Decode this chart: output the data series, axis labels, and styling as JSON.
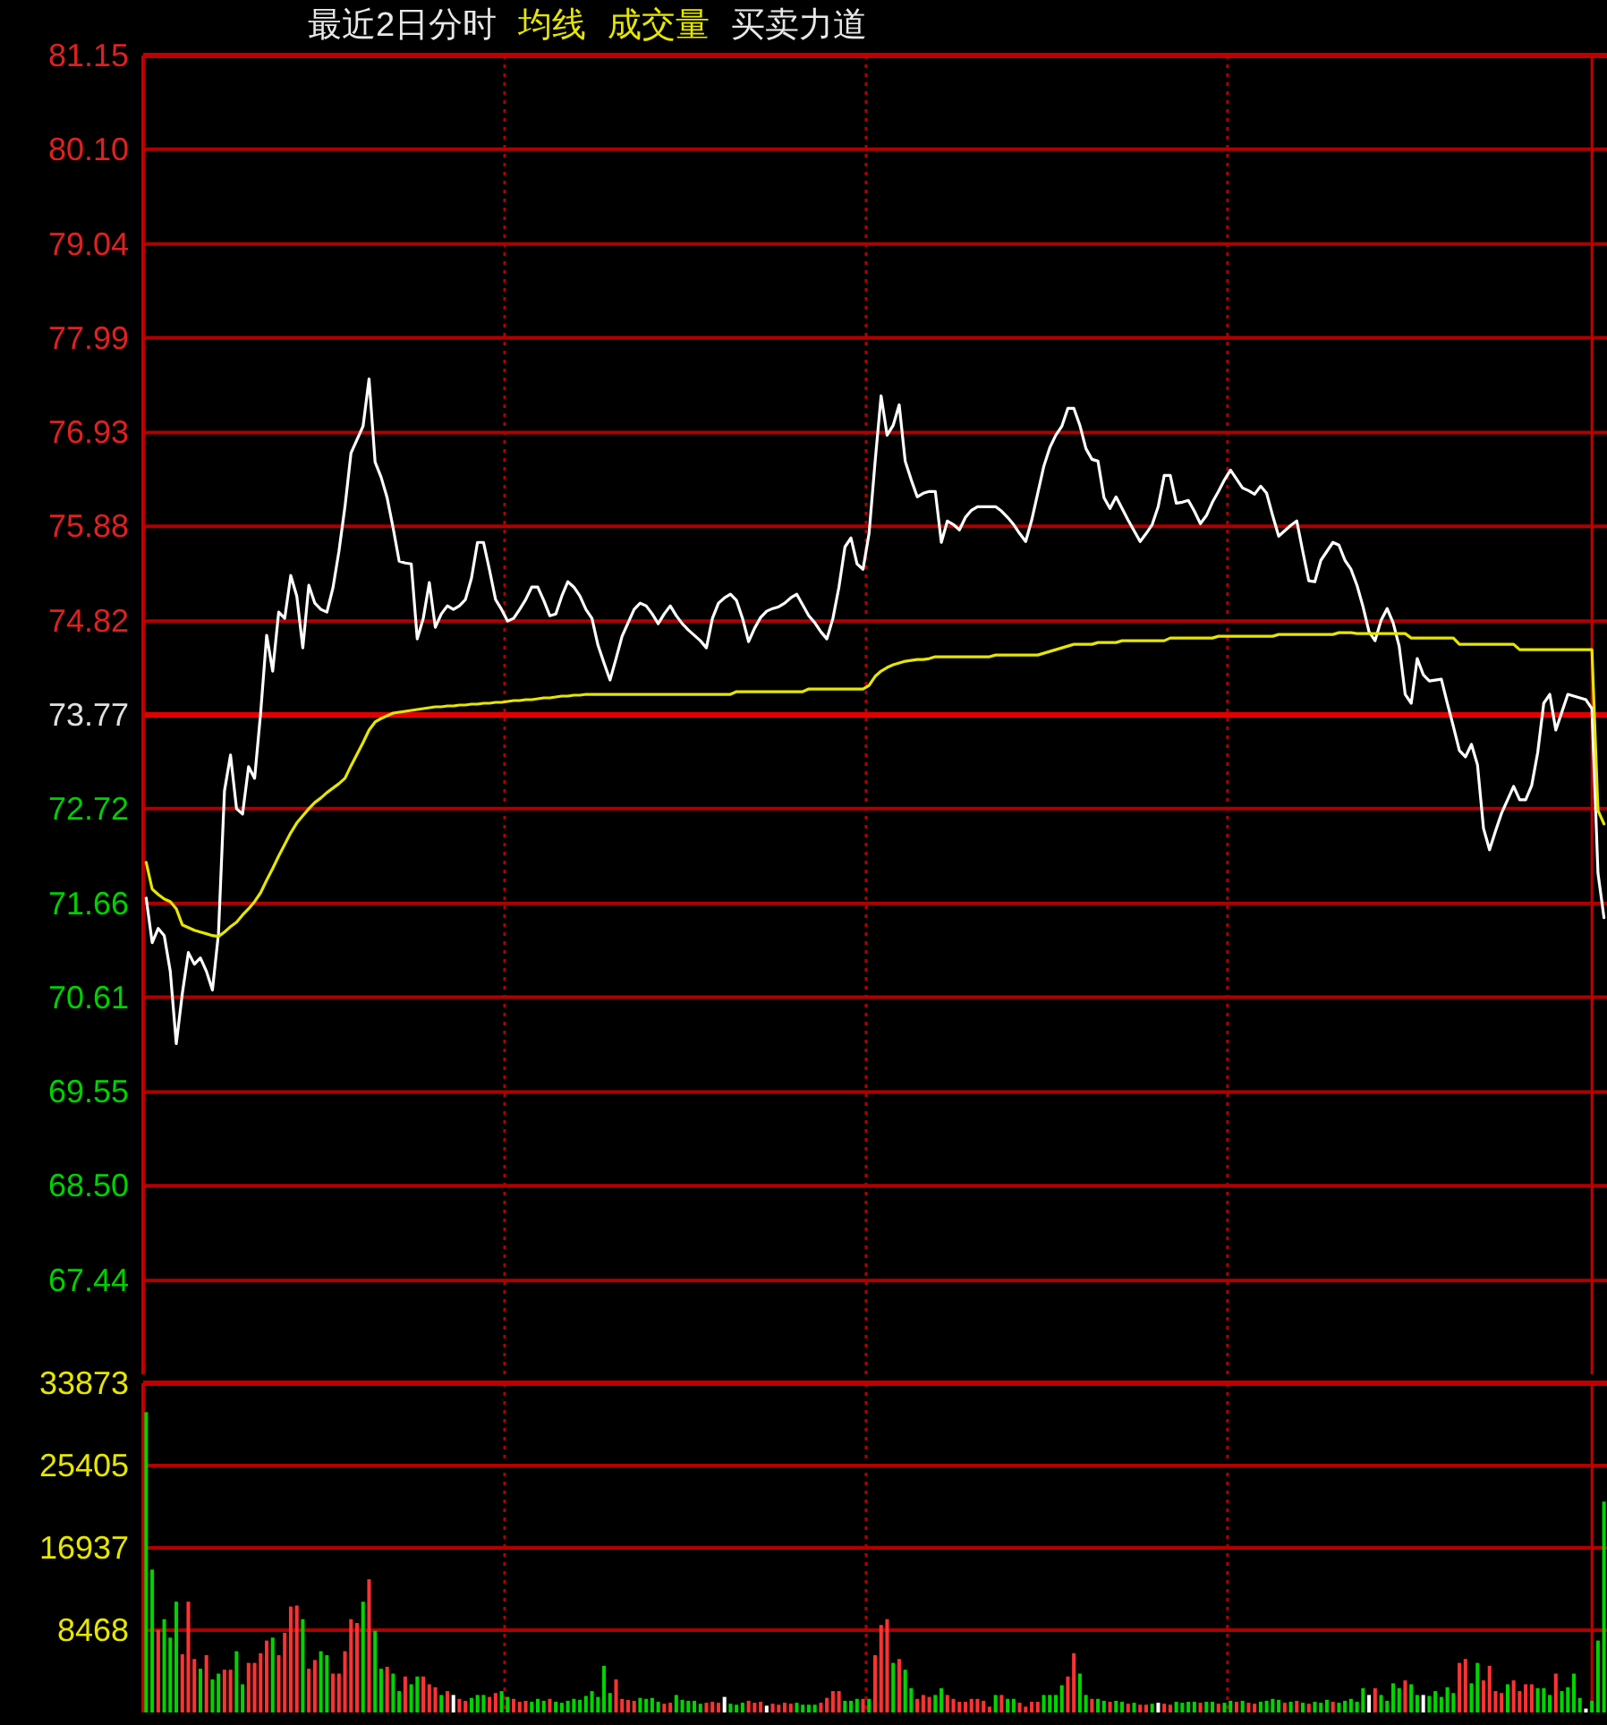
{
  "chart_data": [
    {
      "type": "line",
      "title": "最近2日分时",
      "annotations": [
        "成交量",
        "买卖力道"
      ],
      "grid": true,
      "tick_labels": "y",
      "ylim": [
        66.39,
        81.15
      ],
      "yticks": [
        81.15,
        {
          "value": 80.1,
          "label": "80.10"
        },
        79.04,
        77.99,
        76.93,
        75.88,
        74.82,
        73.77,
        72.72,
        71.66,
        70.61,
        69.55,
        {
          "value": 68.5,
          "label": "68.50"
        },
        67.44
      ],
      "ref_lines": [
        {
          "axis": "y",
          "value": 73.77,
          "color": "#e00000"
        }
      ],
      "categories": [
        null,
        null,
        null,
        null,
        null,
        null,
        null,
        null,
        null,
        null,
        null,
        null,
        null,
        null,
        null,
        null,
        null,
        null,
        null,
        null,
        null,
        null,
        null,
        null,
        null,
        null,
        null,
        null,
        null,
        null,
        null,
        null,
        null,
        null,
        null,
        null,
        null,
        null,
        null,
        null,
        null,
        null,
        null,
        null,
        null,
        null,
        null,
        null,
        null,
        null,
        null,
        null,
        null,
        null,
        null,
        null,
        null,
        null,
        null,
        null,
        null,
        null,
        null,
        null,
        null,
        null,
        null,
        null,
        null,
        null,
        null,
        null,
        null,
        null,
        null,
        null,
        null,
        null,
        null,
        null,
        null,
        null,
        null,
        null,
        null,
        null,
        null,
        null,
        null,
        null,
        null,
        null,
        null,
        null,
        null,
        null,
        null,
        null,
        null,
        null,
        null,
        null,
        null,
        null,
        null,
        null,
        null,
        null,
        null,
        null,
        null,
        null,
        null,
        null,
        null,
        null,
        null,
        null,
        null,
        null,
        null,
        null,
        null,
        null,
        null,
        null,
        null,
        null,
        null,
        null,
        null,
        null,
        null,
        null,
        null,
        null,
        null,
        null,
        null,
        null,
        null,
        null,
        null,
        null,
        null,
        null,
        null,
        null,
        null,
        null,
        null,
        null,
        null,
        null,
        null,
        null,
        null,
        null,
        null,
        null,
        null,
        null,
        null,
        null,
        null,
        null,
        null,
        null,
        null,
        null,
        null,
        null,
        null,
        null,
        null,
        null,
        null,
        null,
        null,
        null,
        null,
        null,
        null,
        null,
        null,
        null,
        null,
        null,
        null,
        null,
        null,
        null,
        null,
        null,
        null,
        null,
        null,
        null,
        null,
        null,
        null,
        null,
        null,
        null,
        null,
        null,
        null,
        null,
        null,
        null,
        null,
        null,
        null,
        null,
        null,
        null,
        null,
        null,
        null,
        null,
        null,
        null,
        null,
        null,
        null,
        null,
        null,
        null,
        null,
        null,
        null,
        null,
        null,
        null,
        null,
        null,
        null,
        null,
        null,
        null,
        null,
        null,
        null
      ],
      "series": [
        {
          "color": "#ffffff",
          "values": [
            71.72,
            71.22,
            71.38,
            71.3,
            70.9,
            70.09,
            70.65,
            71.11,
            70.98,
            71.05,
            70.9,
            70.69,
            71.32,
            72.92,
            73.32,
            72.72,
            72.66,
            73.19,
            73.06,
            73.79,
            74.66,
            74.26,
            74.92,
            74.85,
            75.33,
            75.1,
            74.52,
            75.22,
            75.02,
            74.95,
            74.92,
            75.19,
            75.6,
            76.1,
            76.7,
            76.85,
            77.0,
            77.53,
            76.6,
            76.43,
            76.2,
            75.86,
            75.49,
            75.47,
            75.46,
            74.62,
            74.85,
            75.25,
            74.75,
            74.9,
            74.99,
            74.95,
            74.99,
            75.06,
            75.3,
            75.7,
            75.7,
            75.39,
            75.06,
            74.95,
            74.82,
            74.85,
            74.95,
            75.06,
            75.2,
            75.2,
            75.05,
            74.88,
            74.9,
            75.1,
            75.26,
            75.2,
            75.1,
            74.95,
            74.85,
            74.55,
            74.35,
            74.16,
            74.4,
            74.65,
            74.8,
            74.95,
            75.02,
            74.99,
            74.9,
            74.79,
            74.9,
            74.99,
            74.88,
            74.79,
            74.72,
            74.66,
            74.6,
            74.52,
            74.85,
            75.02,
            75.08,
            75.12,
            75.05,
            74.85,
            74.59,
            74.74,
            74.86,
            74.93,
            74.96,
            74.98,
            75.02,
            75.08,
            75.12,
            75.0,
            74.88,
            74.8,
            74.7,
            74.62,
            74.85,
            75.2,
            75.65,
            75.75,
            75.46,
            75.4,
            75.8,
            76.6,
            77.34,
            76.9,
            77.01,
            77.24,
            76.61,
            76.4,
            76.21,
            76.25,
            76.27,
            76.27,
            75.7,
            75.94,
            75.9,
            75.84,
            75.98,
            76.06,
            76.1,
            76.1,
            76.1,
            76.1,
            76.05,
            75.98,
            75.9,
            75.8,
            75.71,
            75.95,
            76.25,
            76.55,
            76.76,
            76.9,
            77.0,
            77.2,
            77.2,
            77.01,
            76.75,
            76.63,
            76.61,
            76.2,
            76.08,
            76.21,
            76.08,
            75.95,
            75.83,
            75.71,
            75.8,
            75.9,
            76.1,
            76.45,
            76.45,
            76.14,
            76.15,
            76.17,
            76.05,
            75.91,
            76.0,
            76.15,
            76.27,
            76.4,
            76.51,
            76.41,
            76.31,
            76.28,
            76.24,
            76.33,
            76.25,
            76.0,
            75.77,
            75.83,
            75.89,
            75.94,
            75.6,
            75.27,
            75.26,
            75.5,
            75.6,
            75.7,
            75.67,
            75.5,
            75.4,
            75.22,
            74.98,
            74.7,
            74.6,
            74.83,
            74.96,
            74.8,
            74.54,
            74.0,
            73.9,
            74.4,
            74.22,
            74.15,
            74.16,
            74.17,
            73.9,
            73.64,
            73.37,
            73.3,
            73.44,
            73.21,
            72.5,
            72.26,
            72.47,
            72.67,
            72.82,
            72.97,
            72.82,
            72.82,
            72.98,
            73.35,
            73.9,
            74.0,
            73.6,
            73.8,
            74.0,
            73.98,
            73.96,
            73.94,
            73.84,
            72.0,
            71.5
          ]
        },
        {
          "name": "均线",
          "color": "#e6e600",
          "values": [
            72.12,
            71.82,
            71.76,
            71.71,
            71.68,
            71.6,
            71.42,
            71.39,
            71.36,
            71.34,
            71.32,
            71.3,
            71.29,
            71.34,
            71.4,
            71.45,
            71.53,
            71.6,
            71.68,
            71.78,
            71.92,
            72.05,
            72.19,
            72.32,
            72.45,
            72.56,
            72.64,
            72.72,
            72.79,
            72.84,
            72.9,
            72.95,
            73.0,
            73.06,
            73.2,
            73.33,
            73.46,
            73.6,
            73.69,
            73.73,
            73.76,
            73.79,
            73.8,
            73.81,
            73.82,
            73.83,
            73.84,
            73.85,
            73.86,
            73.86,
            73.87,
            73.87,
            73.88,
            73.88,
            73.89,
            73.89,
            73.9,
            73.9,
            73.91,
            73.91,
            73.92,
            73.93,
            73.93,
            73.94,
            73.94,
            73.95,
            73.96,
            73.96,
            73.97,
            73.98,
            73.98,
            73.99,
            73.99,
            74.0,
            74.0,
            74.0,
            74.0,
            74.0,
            74.0,
            74.0,
            74.0,
            74.0,
            74.0,
            74.0,
            74.0,
            74.0,
            74.0,
            74.0,
            74.0,
            74.0,
            74.0,
            74.0,
            74.0,
            74.0,
            74.0,
            74.0,
            74.0,
            74.0,
            74.03,
            74.03,
            74.03,
            74.03,
            74.03,
            74.03,
            74.03,
            74.03,
            74.03,
            74.03,
            74.03,
            74.03,
            74.06,
            74.06,
            74.06,
            74.06,
            74.06,
            74.06,
            74.06,
            74.06,
            74.06,
            74.06,
            74.1,
            74.2,
            74.26,
            74.3,
            74.33,
            74.35,
            74.37,
            74.38,
            74.39,
            74.39,
            74.4,
            74.42,
            74.42,
            74.42,
            74.42,
            74.42,
            74.42,
            74.42,
            74.42,
            74.42,
            74.42,
            74.44,
            74.44,
            74.44,
            74.44,
            74.44,
            74.44,
            74.44,
            74.44,
            74.46,
            74.48,
            74.5,
            74.52,
            74.54,
            74.56,
            74.56,
            74.56,
            74.56,
            74.58,
            74.58,
            74.58,
            74.58,
            74.6,
            74.6,
            74.6,
            74.6,
            74.6,
            74.6,
            74.6,
            74.6,
            74.63,
            74.63,
            74.63,
            74.63,
            74.63,
            74.63,
            74.63,
            74.63,
            74.65,
            74.65,
            74.65,
            74.65,
            74.65,
            74.65,
            74.65,
            74.65,
            74.65,
            74.65,
            74.67,
            74.67,
            74.67,
            74.67,
            74.67,
            74.67,
            74.67,
            74.67,
            74.67,
            74.67,
            74.69,
            74.69,
            74.69,
            74.68,
            74.68,
            74.68,
            74.68,
            74.68,
            74.68,
            74.68,
            74.68,
            74.68,
            74.63,
            74.63,
            74.63,
            74.63,
            74.63,
            74.63,
            74.63,
            74.63,
            74.56,
            74.56,
            74.56,
            74.56,
            74.56,
            74.56,
            74.56,
            74.56,
            74.56,
            74.56,
            74.5,
            74.5,
            74.5,
            74.5,
            74.5,
            74.5,
            74.5,
            74.5,
            74.5,
            74.5,
            74.5,
            74.5,
            74.5,
            72.7,
            72.55
          ]
        }
      ]
    },
    {
      "type": "bar",
      "grid": true,
      "tick_labels": "y",
      "ylim": [
        0,
        33873
      ],
      "yticks": [
        33873,
        25405,
        16937,
        8468
      ],
      "categories": [
        null,
        null,
        null,
        null,
        null,
        null,
        null,
        null,
        null,
        null,
        null,
        null,
        null,
        null,
        null,
        null,
        null,
        null,
        null,
        null,
        null,
        null,
        null,
        null,
        null,
        null,
        null,
        null,
        null,
        null,
        null,
        null,
        null,
        null,
        null,
        null,
        null,
        null,
        null,
        null,
        null,
        null,
        null,
        null,
        null,
        null,
        null,
        null,
        null,
        null,
        null,
        null,
        null,
        null,
        null,
        null,
        null,
        null,
        null,
        null,
        null,
        null,
        null,
        null,
        null,
        null,
        null,
        null,
        null,
        null,
        null,
        null,
        null,
        null,
        null,
        null,
        null,
        null,
        null,
        null,
        null,
        null,
        null,
        null,
        null,
        null,
        null,
        null,
        null,
        null,
        null,
        null,
        null,
        null,
        null,
        null,
        null,
        null,
        null,
        null,
        null,
        null,
        null,
        null,
        null,
        null,
        null,
        null,
        null,
        null,
        null,
        null,
        null,
        null,
        null,
        null,
        null,
        null,
        null,
        null,
        null,
        null,
        null,
        null,
        null,
        null,
        null,
        null,
        null,
        null,
        null,
        null,
        null,
        null,
        null,
        null,
        null,
        null,
        null,
        null,
        null,
        null,
        null,
        null,
        null,
        null,
        null,
        null,
        null,
        null,
        null,
        null,
        null,
        null,
        null,
        null,
        null,
        null,
        null,
        null,
        null,
        null,
        null,
        null,
        null,
        null,
        null,
        null,
        null,
        null,
        null,
        null,
        null,
        null,
        null,
        null,
        null,
        null,
        null,
        null,
        null,
        null,
        null,
        null,
        null,
        null,
        null,
        null,
        null,
        null,
        null,
        null,
        null,
        null,
        null,
        null,
        null,
        null,
        null,
        null,
        null,
        null,
        null,
        null,
        null,
        null,
        null,
        null,
        null,
        null,
        null,
        null,
        null,
        null,
        null,
        null,
        null,
        null,
        null,
        null,
        null,
        null,
        null,
        null,
        null,
        null,
        null,
        null,
        null,
        null,
        null,
        null,
        null,
        null,
        null,
        null,
        null,
        null,
        null,
        null,
        null,
        null,
        null
      ],
      "values": [
        30900,
        14700,
        8500,
        9600,
        7700,
        11400,
        6000,
        11400,
        5500,
        4500,
        5900,
        3400,
        4000,
        4400,
        4400,
        6300,
        2900,
        5100,
        5100,
        6100,
        7400,
        7700,
        5900,
        8200,
        10900,
        11000,
        9600,
        4500,
        5400,
        6300,
        5900,
        4000,
        4000,
        6300,
        9600,
        9200,
        11400,
        13700,
        8400,
        4500,
        4700,
        4000,
        2200,
        3700,
        2900,
        3700,
        3700,
        2900,
        2600,
        1800,
        2200,
        1800,
        1400,
        1200,
        1500,
        1800,
        1800,
        1600,
        2000,
        2200,
        1600,
        1400,
        1100,
        1200,
        1100,
        1400,
        1200,
        1400,
        1100,
        1000,
        1200,
        1400,
        1300,
        1700,
        2200,
        1600,
        4800,
        2000,
        3400,
        1400,
        1300,
        1200,
        1500,
        1400,
        1500,
        1100,
        900,
        1000,
        1800,
        1300,
        1200,
        1200,
        900,
        1000,
        1100,
        1000,
        1600,
        900,
        800,
        1000,
        1200,
        1000,
        1100,
        700,
        900,
        800,
        1000,
        900,
        1000,
        800,
        800,
        800,
        1000,
        1500,
        2200,
        2200,
        1200,
        1200,
        1400,
        1400,
        1400,
        5900,
        9000,
        9600,
        5100,
        5500,
        4400,
        2500,
        1400,
        1800,
        1600,
        1800,
        2500,
        1800,
        1400,
        1100,
        1100,
        1400,
        1400,
        1200,
        600,
        1800,
        1800,
        1400,
        1400,
        1000,
        600,
        1100,
        1100,
        1800,
        1800,
        1800,
        2800,
        3700,
        6100,
        4000,
        1800,
        1400,
        1400,
        1200,
        1100,
        1200,
        1100,
        900,
        1000,
        800,
        800,
        900,
        1000,
        900,
        800,
        1100,
        1000,
        1100,
        1100,
        1000,
        1100,
        1100,
        900,
        1000,
        1200,
        1100,
        1200,
        1000,
        900,
        1100,
        1200,
        1400,
        1300,
        1000,
        1100,
        1200,
        1000,
        900,
        1100,
        1000,
        1300,
        1100,
        1000,
        1200,
        1400,
        1100,
        2500,
        1800,
        2500,
        1800,
        1200,
        3000,
        2500,
        3300,
        2900,
        1800,
        1800,
        1700,
        2200,
        1600,
        2600,
        2000,
        5100,
        5500,
        3000,
        5100,
        3300,
        4800,
        2200,
        2000,
        2900,
        3300,
        2200,
        2900,
        2900,
        2500,
        2500,
        1800,
        4000,
        2200,
        2600,
        4000,
        1500,
        400,
        1200,
        7400,
        21700
      ],
      "colors": [
        "#00d400",
        "#00d400",
        "#ff3232",
        "#00d400",
        "#00d400",
        "#00d400",
        "#ff3232",
        "#ff3232",
        "#ff3232",
        "#00d400",
        "#ff3232",
        "#00d400",
        "#00d400",
        "#ff3232",
        "#ff3232",
        "#00d400",
        "#00d400",
        "#ff3232",
        "#ff3232",
        "#ff3232",
        "#ff3232",
        "#00d400",
        "#ff3232",
        "#ff3232",
        "#ff3232",
        "#ff3232",
        "#00d400",
        "#ff3232",
        "#ff3232",
        "#00d400",
        "#00d400",
        "#ff3232",
        "#ff3232",
        "#ff3232",
        "#ff3232",
        "#ff3232",
        "#00d400",
        "#ff3232",
        "#00d400",
        "#00d400",
        "#ff3232",
        "#00d400",
        "#00d400",
        "#ff3232",
        "#00d400",
        "#00d400",
        "#ff3232",
        "#ff3232",
        "#ff3232",
        "#00d400",
        "#ff3232",
        "#ffffff",
        "#ff3232",
        "#ff3232",
        "#00d400",
        "#00d400",
        "#00d400",
        "#ff3232",
        "#ff3232",
        "#00d400",
        "#00d400",
        "#ff3232",
        "#ff3232",
        "#ff3232",
        "#00d400",
        "#00d400",
        "#00d400",
        "#ff3232",
        "#00d400",
        "#00d400",
        "#00d400",
        "#00d400",
        "#00d400",
        "#00d400",
        "#00d400",
        "#00d400",
        "#00d400",
        "#00d400",
        "#ff3232",
        "#ff3232",
        "#ff3232",
        "#ff3232",
        "#00d400",
        "#00d400",
        "#00d400",
        "#00d400",
        "#ff3232",
        "#ff3232",
        "#00d400",
        "#00d400",
        "#00d400",
        "#00d400",
        "#00d400",
        "#ff3232",
        "#ff3232",
        "#ff3232",
        "#ffffff",
        "#00d400",
        "#00d400",
        "#00d400",
        "#ff3232",
        "#ff3232",
        "#ff3232",
        "#ffffff",
        "#ff3232",
        "#ff3232",
        "#ff3232",
        "#ff3232",
        "#00d400",
        "#00d400",
        "#00d400",
        "#00d400",
        "#ff3232",
        "#ff3232",
        "#ff3232",
        "#ff3232",
        "#00d400",
        "#00d400",
        "#00d400",
        "#ff3232",
        "#00d400",
        "#ff3232",
        "#ff3232",
        "#ff3232",
        "#00d400",
        "#ff3232",
        "#00d400",
        "#00d400",
        "#ff3232",
        "#ff3232",
        "#ff3232",
        "#00d400",
        "#00d400",
        "#ff3232",
        "#ff3232",
        "#ff3232",
        "#ff3232",
        "#ff3232",
        "#ff3232",
        "#ff3232",
        "#ff3232",
        "#00d400",
        "#ff3232",
        "#00d400",
        "#00d400",
        "#ff3232",
        "#ff3232",
        "#ff3232",
        "#ff3232",
        "#00d400",
        "#00d400",
        "#00d400",
        "#00d400",
        "#ff3232",
        "#ff3232",
        "#00d400",
        "#00d400",
        "#ff3232",
        "#00d400",
        "#00d400",
        "#ff3232",
        "#00d400",
        "#00d400",
        "#ff3232",
        "#00d400",
        "#ff3232",
        "#ff3232",
        "#00d400",
        "#ffffff",
        "#ff3232",
        "#ff3232",
        "#00d400",
        "#00d400",
        "#00d400",
        "#00d400",
        "#ff3232",
        "#00d400",
        "#00d400",
        "#ff3232",
        "#00d400",
        "#00d400",
        "#ff3232",
        "#00d400",
        "#ff3232",
        "#ff3232",
        "#00d400",
        "#00d400",
        "#00d400",
        "#00d400",
        "#ff3232",
        "#00d400",
        "#ff3232",
        "#00d400",
        "#ff3232",
        "#00d400",
        "#00d400",
        "#00d400",
        "#ff3232",
        "#00d400",
        "#00d400",
        "#00d400",
        "#00d400",
        "#00d400",
        "#ffffff",
        "#ff3232",
        "#00d400",
        "#00d400",
        "#00d400",
        "#00d400",
        "#ff3232",
        "#00d400",
        "#00d400",
        "#ffffff",
        "#00d400",
        "#00d400",
        "#00d400",
        "#00d400",
        "#00d400",
        "#ff3232",
        "#ff3232",
        "#00d400",
        "#00d400",
        "#ff3232",
        "#ff3232",
        "#ff3232",
        "#ff3232",
        "#00d400",
        "#ff3232",
        "#ff3232",
        "#ff3232",
        "#ff3232",
        "#00d400",
        "#00d400",
        "#00d400",
        "#ff3232",
        "#00d400",
        "#00d400",
        "#00d400",
        "#00d400",
        "#ffffff",
        "#00d400",
        "#00d400",
        "#00d400"
      ]
    }
  ]
}
